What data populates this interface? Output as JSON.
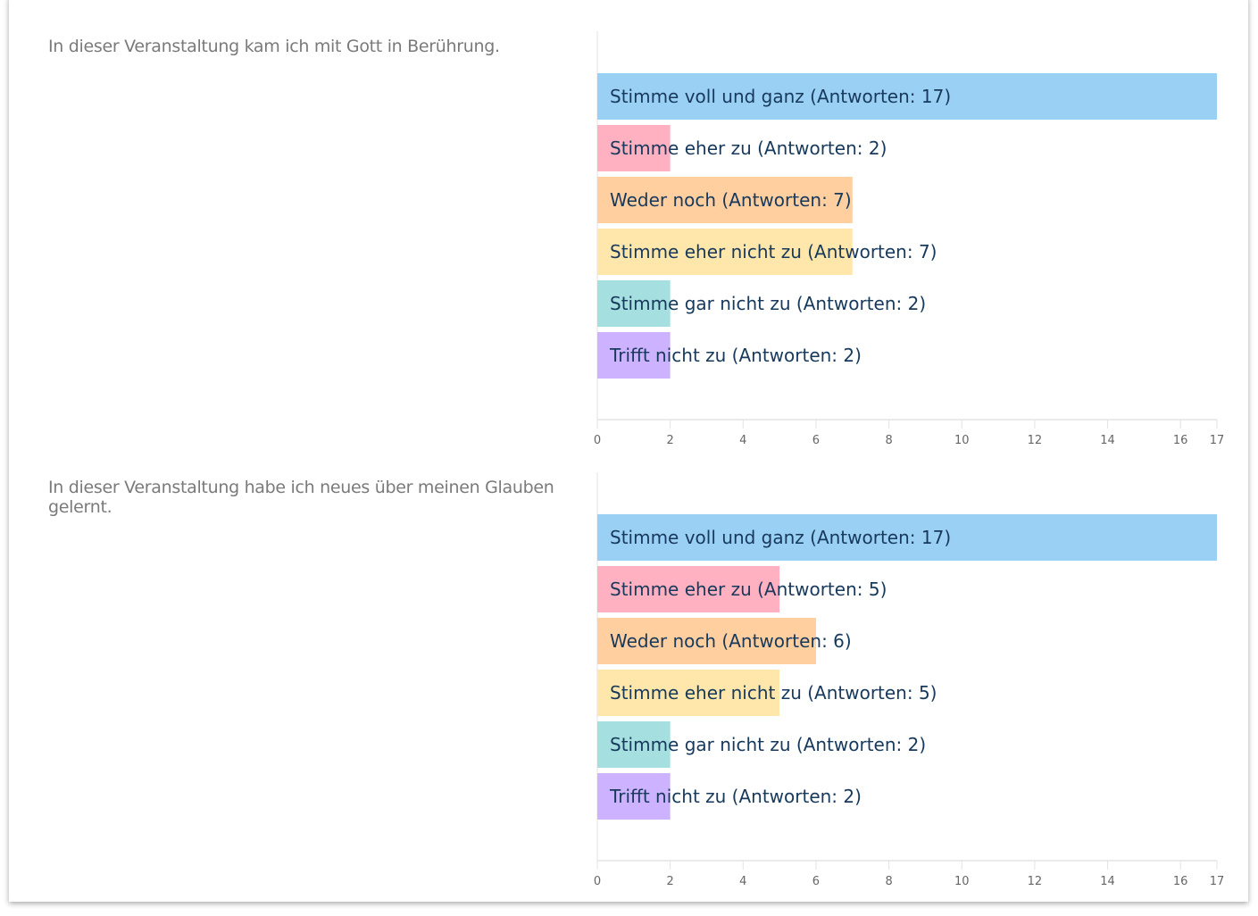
{
  "chart_data": [
    {
      "type": "bar",
      "orientation": "horizontal",
      "title": "In dieser Veranstaltung kam ich mit Gott in Berührung.",
      "categories": [
        "Stimme voll und ganz (Antworten: 17)",
        "Stimme eher zu (Antworten: 2)",
        "Weder noch (Antworten: 7)",
        "Stimme eher nicht zu (Antworten: 7)",
        "Stimme gar nicht zu (Antworten: 2)",
        "Trifft nicht zu (Antworten: 2)"
      ],
      "values": [
        17,
        2,
        7,
        7,
        2,
        2
      ],
      "xlim": [
        0,
        17
      ],
      "xticks": [
        "0",
        "2",
        "4",
        "6",
        "8",
        "10",
        "12",
        "14",
        "16",
        "17"
      ],
      "colors": [
        "#9bd0f5",
        "#ffb1c1",
        "#ffcf9f",
        "#ffe6aa",
        "#a5dfdf",
        "#ccb2ff"
      ]
    },
    {
      "type": "bar",
      "orientation": "horizontal",
      "title": "In dieser Veranstaltung habe ich neues über meinen Glauben gelernt.",
      "categories": [
        "Stimme voll und ganz (Antworten: 17)",
        "Stimme eher zu (Antworten: 5)",
        "Weder noch (Antworten: 6)",
        "Stimme eher nicht zu (Antworten: 5)",
        "Stimme gar nicht zu (Antworten: 2)",
        "Trifft nicht zu (Antworten: 2)"
      ],
      "values": [
        17,
        5,
        6,
        5,
        2,
        2
      ],
      "xlim": [
        0,
        17
      ],
      "xticks": [
        "0",
        "2",
        "4",
        "6",
        "8",
        "10",
        "12",
        "14",
        "16",
        "17"
      ],
      "colors": [
        "#9bd0f5",
        "#ffb1c1",
        "#ffcf9f",
        "#ffe6aa",
        "#a5dfdf",
        "#ccb2ff"
      ]
    }
  ]
}
